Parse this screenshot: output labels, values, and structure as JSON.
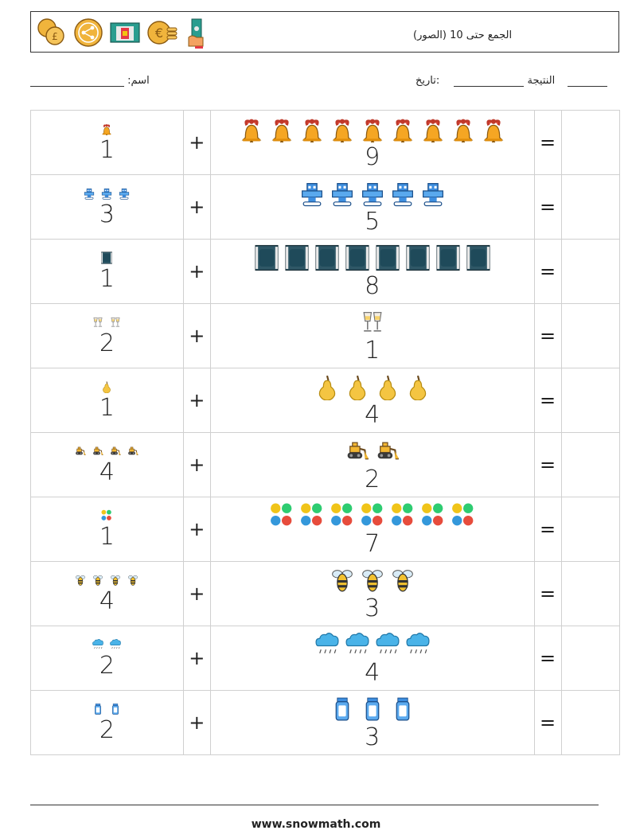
{
  "header": {
    "title": "الجمع حتى 10 (الصور)",
    "icons": [
      "coins-icon",
      "share-coin-icon",
      "money-card-icon",
      "euro-coins-icon",
      "hand-cash-icon"
    ]
  },
  "meta": {
    "name_label": ":اسم",
    "result_label": "النتيجة",
    "date_label": ":تاريخ"
  },
  "symbols": {
    "plus": "+",
    "equals": "="
  },
  "rows": [
    {
      "a": "1",
      "b": "9",
      "icon": "bell-icon"
    },
    {
      "a": "3",
      "b": "5",
      "icon": "robot-icon"
    },
    {
      "a": "1",
      "b": "8",
      "icon": "film-frame-icon"
    },
    {
      "a": "2",
      "b": "1",
      "icon": "toast-glasses-icon"
    },
    {
      "a": "1",
      "b": "4",
      "icon": "pear-icon"
    },
    {
      "a": "4",
      "b": "2",
      "icon": "bulldozer-icon"
    },
    {
      "a": "1",
      "b": "7",
      "icon": "number-blocks-icon"
    },
    {
      "a": "4",
      "b": "3",
      "icon": "bee-icon"
    },
    {
      "a": "2",
      "b": "4",
      "icon": "rain-cloud-icon"
    },
    {
      "a": "2",
      "b": "3",
      "icon": "bottle-robot-icon"
    }
  ],
  "footer": {
    "url": "www.snowmath.com"
  }
}
